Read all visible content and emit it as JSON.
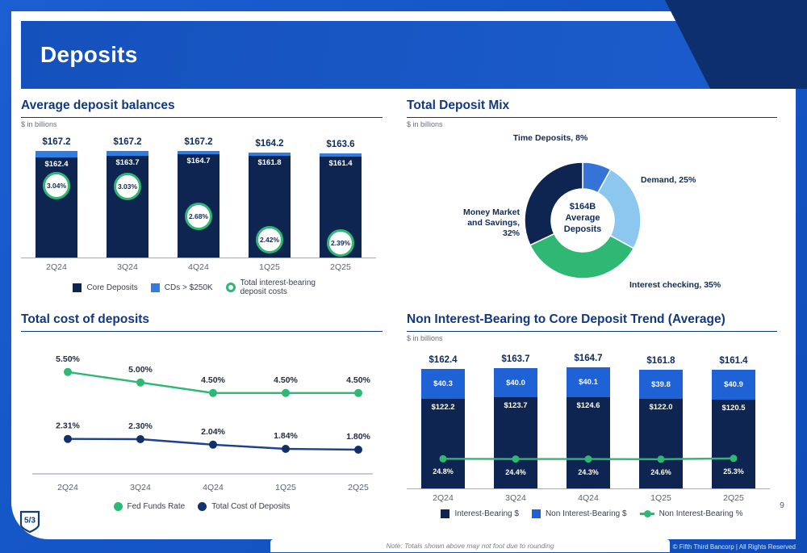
{
  "page": {
    "title": "Deposits",
    "page_number": "9",
    "note": "Note: Totals shown above may not foot due to rounding",
    "copyright": "© Fifth Third Bancorp | All Rights Reserved",
    "logo_text": "5/3"
  },
  "colors": {
    "frame": "#1254c6",
    "header_blue": "#1a58c8",
    "header_navy": "#0e2f6e",
    "title_blue": "#12397f",
    "bar_navy": "#0d2550",
    "bright_blue": "#1f62d5",
    "light_blue": "#2f7de0",
    "pale_blue": "#8cc7f0",
    "mid_blue": "#3573d6",
    "green": "#2eb874",
    "line_navy": "#132f6b",
    "text_gray": "#5c6370"
  },
  "chart_data": [
    {
      "id": "average_deposit_balances",
      "type": "bar",
      "title": "Average deposit balances",
      "subtitle": "$ in billions",
      "categories": [
        "2Q24",
        "3Q24",
        "4Q24",
        "1Q25",
        "2Q25"
      ],
      "totals": [
        167.2,
        167.2,
        167.2,
        164.2,
        163.6
      ],
      "total_labels": [
        "$167.2",
        "$167.2",
        "$167.2",
        "$164.2",
        "$163.6"
      ],
      "series": [
        {
          "name": "Core Deposits",
          "values": [
            162.4,
            163.7,
            164.7,
            161.8,
            161.4
          ],
          "labels": [
            "$162.4",
            "$163.7",
            "$164.7",
            "$161.8",
            "$161.4"
          ],
          "color": "#0d2550"
        },
        {
          "name": "CDs > $250K",
          "values": [
            4.8,
            3.5,
            2.5,
            2.4,
            2.2
          ],
          "color": "#2f7de0"
        },
        {
          "name": "Total interest-bearing deposit costs",
          "values": [
            3.04,
            3.03,
            2.68,
            2.42,
            2.39
          ],
          "labels": [
            "3.04%",
            "3.03%",
            "2.68%",
            "2.42%",
            "2.39%"
          ],
          "color": "#2eb874",
          "role": "rate_badges"
        }
      ]
    },
    {
      "id": "total_deposit_mix",
      "type": "pie",
      "title": "Total Deposit Mix",
      "subtitle": "$ in billions",
      "center_label": "$164B\nAverage\nDeposits",
      "slices": [
        {
          "label": "Time Deposits, 8%",
          "name": "Time Deposits",
          "value": 8,
          "color": "#3573d6"
        },
        {
          "label": "Demand, 25%",
          "name": "Demand",
          "value": 25,
          "color": "#8cc7f0"
        },
        {
          "label": "Interest checking, 35%",
          "name": "Interest checking",
          "value": 35,
          "color": "#2eb874"
        },
        {
          "label": "Money Market and Savings, 32%",
          "name": "Money Market and Savings",
          "value": 32,
          "color": "#0d2550"
        }
      ]
    },
    {
      "id": "total_cost_of_deposits",
      "type": "line",
      "title": "Total cost of deposits",
      "categories": [
        "2Q24",
        "3Q24",
        "4Q24",
        "1Q25",
        "2Q25"
      ],
      "series": [
        {
          "name": "Fed Funds Rate",
          "values": [
            5.5,
            5.0,
            4.5,
            4.5,
            4.5
          ],
          "labels": [
            "5.50%",
            "5.00%",
            "4.50%",
            "4.50%",
            "4.50%"
          ],
          "color": "#2eb874"
        },
        {
          "name": "Total Cost of Deposits",
          "values": [
            2.31,
            2.3,
            2.04,
            1.84,
            1.8
          ],
          "labels": [
            "2.31%",
            "2.30%",
            "2.04%",
            "1.84%",
            "1.80%"
          ],
          "color": "#132f6b"
        }
      ]
    },
    {
      "id": "nib_to_core_deposit_trend",
      "type": "bar",
      "title": "Non Interest-Bearing to Core Deposit Trend (Average)",
      "subtitle": "$ in billions",
      "categories": [
        "2Q24",
        "3Q24",
        "4Q24",
        "1Q25",
        "2Q25"
      ],
      "total_labels": [
        "$162.4",
        "$163.7",
        "$164.7",
        "$161.8",
        "$161.4"
      ],
      "series": [
        {
          "name": "Interest-Bearing $",
          "values": [
            122.2,
            123.7,
            124.6,
            122.0,
            120.5
          ],
          "labels": [
            "$122.2",
            "$123.7",
            "$124.6",
            "$122.0",
            "$120.5"
          ],
          "color": "#0d2550"
        },
        {
          "name": "Non Interest-Bearing $",
          "values": [
            40.3,
            40.0,
            40.1,
            39.8,
            40.9
          ],
          "labels": [
            "$40.3",
            "$40.0",
            "$40.1",
            "$39.8",
            "$40.9"
          ],
          "color": "#1f62d5"
        },
        {
          "name": "Non Interest-Bearing %",
          "values": [
            24.8,
            24.4,
            24.3,
            24.6,
            25.3
          ],
          "labels": [
            "24.8%",
            "24.4%",
            "24.3%",
            "24.6%",
            "25.3%"
          ],
          "color": "#2eb874"
        }
      ]
    }
  ]
}
